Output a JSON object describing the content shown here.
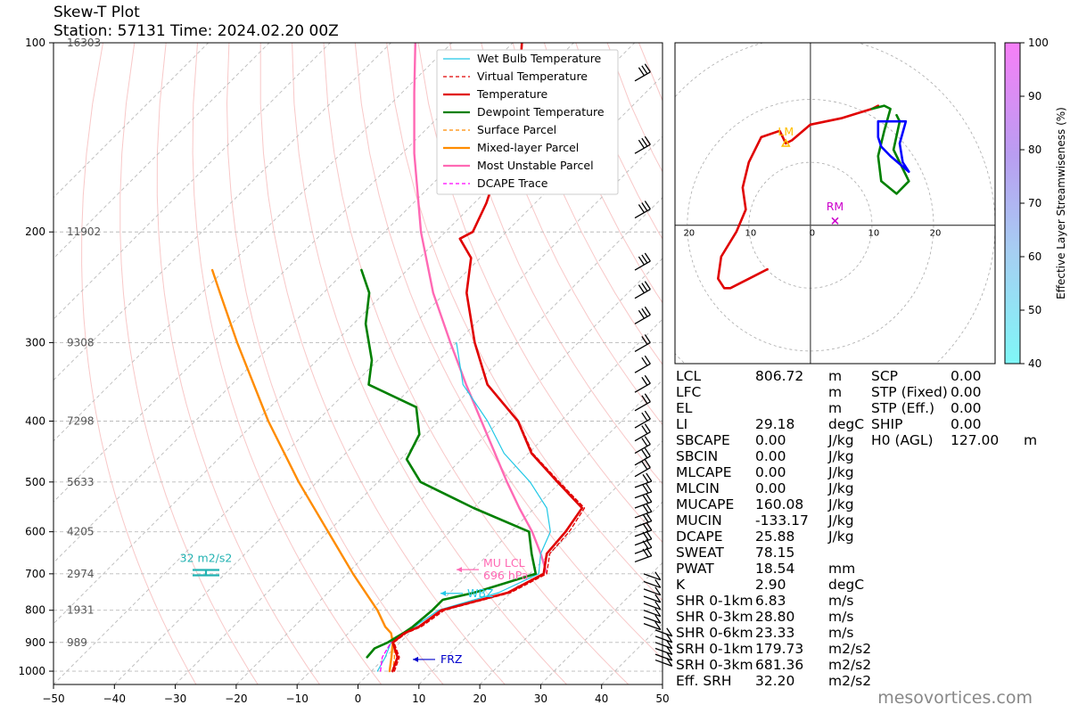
{
  "title": "Skew-T Plot",
  "subtitle": "Station: 57131 Time: 2024.02.20 00Z",
  "watermark": "mesovortices.com",
  "colors": {
    "temperature": "#e00000",
    "virtual_temperature": "#e00000",
    "dewpoint": "#008000",
    "wet_bulb": "#22c8e6",
    "surface_parcel": "#ff8c00",
    "mixed_layer_parcel": "#ff8c00",
    "most_unstable_parcel": "#ff69b4",
    "dcape_trace": "#ff00ff",
    "mu_lcl": "#ff69b4",
    "wbz": "#22c8e6",
    "frz": "#0000cc",
    "srh_marker": "#22b2b2",
    "lm": "#ffc000",
    "rm": "#cc00cc",
    "hodo_green": "#008000",
    "hodo_blue": "#0000ff"
  },
  "chart_data": {
    "type": "line",
    "title": "Skew-T Plot",
    "xlim": [
      -50,
      50
    ],
    "ylim": [
      1000,
      100
    ],
    "xticks": [
      -50,
      -40,
      -30,
      -20,
      -10,
      0,
      10,
      20,
      30,
      40,
      50
    ],
    "yticks": [
      100,
      200,
      300,
      400,
      500,
      600,
      700,
      800,
      900,
      1000
    ],
    "height_labels": [
      {
        "p": 100,
        "label": "16303"
      },
      {
        "p": 200,
        "label": "11902"
      },
      {
        "p": 300,
        "label": "9308"
      },
      {
        "p": 400,
        "label": "7298"
      },
      {
        "p": 500,
        "label": "5633"
      },
      {
        "p": 600,
        "label": "4205"
      },
      {
        "p": 700,
        "label": "2974"
      },
      {
        "p": 800,
        "label": "1931"
      },
      {
        "p": 900,
        "label": "989"
      }
    ],
    "legend": [
      "Wet Bulb Temperature",
      "Virtual Temperature",
      "Temperature",
      "Dewpoint Temperature",
      "Surface Parcel",
      "Mixed-layer Parcel",
      "Most Unstable Parcel",
      "DCAPE Trace"
    ],
    "series": [
      {
        "name": "Temperature",
        "points": [
          [
            1000,
            3.5
          ],
          [
            950,
            2.0
          ],
          [
            900,
            -1.2
          ],
          [
            870,
            -0.8
          ],
          [
            850,
            0.5
          ],
          [
            800,
            1.5
          ],
          [
            750,
            9.5
          ],
          [
            700,
            12.3
          ],
          [
            650,
            9.5
          ],
          [
            600,
            9.0
          ],
          [
            550,
            7.8
          ],
          [
            500,
            -0.5
          ],
          [
            450,
            -9.5
          ],
          [
            400,
            -17.0
          ],
          [
            350,
            -28.0
          ],
          [
            300,
            -37.0
          ],
          [
            250,
            -46.5
          ],
          [
            220,
            -51.5
          ],
          [
            205,
            -56.5
          ],
          [
            200,
            -55.5
          ],
          [
            180,
            -58.0
          ],
          [
            160,
            -61.5
          ],
          [
            145,
            -64.5
          ],
          [
            130,
            -68.0
          ],
          [
            120,
            -71.5
          ],
          [
            110,
            -74.5
          ],
          [
            100,
            -78.5
          ]
        ]
      },
      {
        "name": "Virtual Temperature",
        "points": [
          [
            1000,
            3.8
          ],
          [
            950,
            2.3
          ],
          [
            900,
            -1.0
          ],
          [
            870,
            -0.5
          ],
          [
            850,
            0.9
          ],
          [
            800,
            2.0
          ],
          [
            750,
            10.0
          ],
          [
            700,
            12.8
          ],
          [
            650,
            10.0
          ],
          [
            600,
            9.6
          ],
          [
            550,
            8.2
          ],
          [
            500,
            -0.2
          ],
          [
            450,
            -9.3
          ],
          [
            400,
            -16.9
          ],
          [
            350,
            -28.0
          ],
          [
            300,
            -37.0
          ],
          [
            250,
            -46.5
          ],
          [
            220,
            -51.5
          ],
          [
            205,
            -56.5
          ],
          [
            200,
            -55.5
          ],
          [
            180,
            -58.0
          ],
          [
            160,
            -61.5
          ],
          [
            145,
            -64.5
          ],
          [
            130,
            -68.0
          ],
          [
            120,
            -71.5
          ],
          [
            110,
            -74.5
          ],
          [
            100,
            -78.5
          ]
        ]
      },
      {
        "name": "Dewpoint Temperature",
        "points": [
          [
            950,
            -3.0
          ],
          [
            920,
            -3.2
          ],
          [
            900,
            -2.0
          ],
          [
            870,
            -1.0
          ],
          [
            850,
            -0.5
          ],
          [
            800,
            0.0
          ],
          [
            770,
            0.0
          ],
          [
            750,
            4.0
          ],
          [
            700,
            11.0
          ],
          [
            650,
            7.0
          ],
          [
            600,
            3.0
          ],
          [
            550,
            -10.0
          ],
          [
            500,
            -23.0
          ],
          [
            460,
            -29.0
          ],
          [
            420,
            -31.0
          ],
          [
            380,
            -36.0
          ],
          [
            350,
            -47.5
          ],
          [
            320,
            -51.0
          ],
          [
            280,
            -58.0
          ],
          [
            250,
            -62.5
          ],
          [
            230,
            -67.5
          ]
        ]
      },
      {
        "name": "Wet Bulb Temperature",
        "points": [
          [
            1000,
            1.0
          ],
          [
            950,
            0.0
          ],
          [
            900,
            -1.5
          ],
          [
            850,
            -0.2
          ],
          [
            800,
            1.0
          ],
          [
            750,
            8.0
          ],
          [
            700,
            11.5
          ],
          [
            650,
            8.5
          ],
          [
            600,
            6.5
          ],
          [
            550,
            2.0
          ],
          [
            500,
            -5.0
          ],
          [
            450,
            -14.0
          ],
          [
            400,
            -22.0
          ],
          [
            350,
            -32.0
          ],
          [
            300,
            -40.0
          ]
        ]
      },
      {
        "name": "Surface Parcel",
        "points": [
          [
            1000,
            3.5
          ],
          [
            950,
            1.5
          ],
          [
            900,
            -1.0
          ],
          [
            870,
            -3.0
          ],
          [
            850,
            -5.0
          ],
          [
            800,
            -9.0
          ],
          [
            700,
            -19.0
          ],
          [
            600,
            -30.0
          ],
          [
            500,
            -43.0
          ],
          [
            400,
            -58.0
          ],
          [
            300,
            -76.0
          ],
          [
            250,
            -87.0
          ],
          [
            230,
            -92.0
          ]
        ]
      },
      {
        "name": "Mixed-layer Parcel",
        "points": [
          [
            1000,
            3.0
          ],
          [
            950,
            1.0
          ],
          [
            900,
            -1.2
          ],
          [
            870,
            -3.0
          ],
          [
            850,
            -5.0
          ],
          [
            800,
            -9.0
          ],
          [
            700,
            -19.0
          ],
          [
            600,
            -30.0
          ],
          [
            500,
            -43.0
          ],
          [
            400,
            -58.0
          ],
          [
            300,
            -76.0
          ],
          [
            250,
            -87.0
          ],
          [
            230,
            -92.0
          ]
        ]
      },
      {
        "name": "Most Unstable Parcel",
        "points": [
          [
            696,
            12.5
          ],
          [
            650,
            8.5
          ],
          [
            600,
            3.5
          ],
          [
            550,
            -2.5
          ],
          [
            500,
            -8.8
          ],
          [
            450,
            -15.5
          ],
          [
            400,
            -23.0
          ],
          [
            350,
            -31.5
          ],
          [
            300,
            -41.0
          ],
          [
            250,
            -52.0
          ],
          [
            200,
            -64.0
          ],
          [
            150,
            -78.0
          ],
          [
            120,
            -88.0
          ],
          [
            100,
            -96.0
          ]
        ]
      },
      {
        "name": "DCAPE Trace",
        "points": [
          [
            1000,
            1.5
          ],
          [
            950,
            -0.5
          ],
          [
            900,
            -1.5
          ]
        ]
      }
    ],
    "annotations": [
      {
        "label": "MU LCL",
        "sub": "696 hPa",
        "p": 696
      },
      {
        "label": "WBZ",
        "p": 752
      },
      {
        "label": "FRZ",
        "p": 958
      },
      {
        "label": "32 m2/s2",
        "p": 697
      }
    ],
    "hodograph": {
      "xlim": [
        -22,
        30
      ],
      "ylim": [
        -22,
        29
      ],
      "ring_labels": [
        "20",
        "10",
        "0",
        "10",
        "20"
      ],
      "ring_values": [
        -20,
        -10,
        0,
        10,
        20
      ],
      "lm": {
        "label": "LM",
        "u": -4.0,
        "v": 13.0
      },
      "rm": {
        "label": "RM",
        "u": 4.0,
        "v": 0.7
      },
      "red": [
        [
          -7,
          -7
        ],
        [
          -9,
          -8
        ],
        [
          -13,
          -10
        ],
        [
          -14,
          -10
        ],
        [
          -15,
          -8.5
        ],
        [
          -14.5,
          -5
        ],
        [
          -12,
          -1
        ],
        [
          -10.5,
          2.5
        ],
        [
          -11,
          6
        ],
        [
          -10,
          10
        ],
        [
          -8,
          14
        ],
        [
          -5,
          15
        ],
        [
          -4,
          13
        ],
        [
          -3,
          13.5
        ],
        [
          0,
          16
        ],
        [
          5,
          17
        ],
        [
          10,
          18.5
        ],
        [
          11,
          19
        ]
      ],
      "green": [
        [
          10,
          18.5
        ],
        [
          12,
          19
        ],
        [
          13,
          18.5
        ],
        [
          12,
          15
        ],
        [
          11,
          11
        ],
        [
          11.5,
          7
        ],
        [
          14,
          5
        ],
        [
          16,
          7
        ],
        [
          13.5,
          12
        ],
        [
          14.5,
          16.5
        ],
        [
          14,
          17.5
        ]
      ],
      "blue": [
        [
          11,
          16.5
        ],
        [
          15.5,
          16.5
        ],
        [
          14.5,
          13
        ],
        [
          15,
          10
        ],
        [
          16,
          8.5
        ],
        [
          13,
          11
        ],
        [
          11.5,
          12.5
        ],
        [
          11,
          14
        ],
        [
          11,
          16.5
        ]
      ]
    },
    "colorbar": {
      "label": "Effective Layer Streamwiseness (%)",
      "ticks": [
        40,
        50,
        60,
        70,
        80,
        90,
        100
      ]
    }
  },
  "indices_left": [
    {
      "name": "LCL",
      "value": "806.72",
      "unit": "m"
    },
    {
      "name": "LFC",
      "value": "",
      "unit": "m"
    },
    {
      "name": "EL",
      "value": "",
      "unit": "m"
    },
    {
      "name": "LI",
      "value": "29.18",
      "unit": "degC"
    },
    {
      "name": "SBCAPE",
      "value": "0.00",
      "unit": "J/kg"
    },
    {
      "name": "SBCIN",
      "value": "0.00",
      "unit": "J/kg"
    },
    {
      "name": "MLCAPE",
      "value": "0.00",
      "unit": "J/kg"
    },
    {
      "name": "MLCIN",
      "value": "0.00",
      "unit": "J/kg"
    },
    {
      "name": "MUCAPE",
      "value": "160.08",
      "unit": "J/kg"
    },
    {
      "name": "MUCIN",
      "value": "-133.17",
      "unit": "J/kg"
    },
    {
      "name": "DCAPE",
      "value": "25.88",
      "unit": "J/kg"
    },
    {
      "name": "SWEAT",
      "value": "78.15",
      "unit": ""
    },
    {
      "name": "PWAT",
      "value": "18.54",
      "unit": "mm"
    },
    {
      "name": "K",
      "value": "2.90",
      "unit": "degC"
    },
    {
      "name": "SHR 0-1km",
      "value": "6.83",
      "unit": "m/s"
    },
    {
      "name": "SHR 0-3km",
      "value": "28.80",
      "unit": "m/s"
    },
    {
      "name": "SHR 0-6km",
      "value": "23.33",
      "unit": "m/s"
    },
    {
      "name": "SRH 0-1km",
      "value": "179.73",
      "unit": "m2/s2"
    },
    {
      "name": "SRH 0-3km",
      "value": "681.36",
      "unit": "m2/s2"
    },
    {
      "name": "Eff. SRH",
      "value": "32.20",
      "unit": "m2/s2"
    }
  ],
  "indices_right": [
    {
      "name": "SCP",
      "value": "0.00",
      "unit": ""
    },
    {
      "name": "STP (Fixed)",
      "value": "0.00",
      "unit": ""
    },
    {
      "name": "STP (Eff.)",
      "value": "0.00",
      "unit": ""
    },
    {
      "name": "SHIP",
      "value": "0.00",
      "unit": ""
    },
    {
      "name": "H0 (AGL)",
      "value": "127.00",
      "unit": "m"
    }
  ]
}
